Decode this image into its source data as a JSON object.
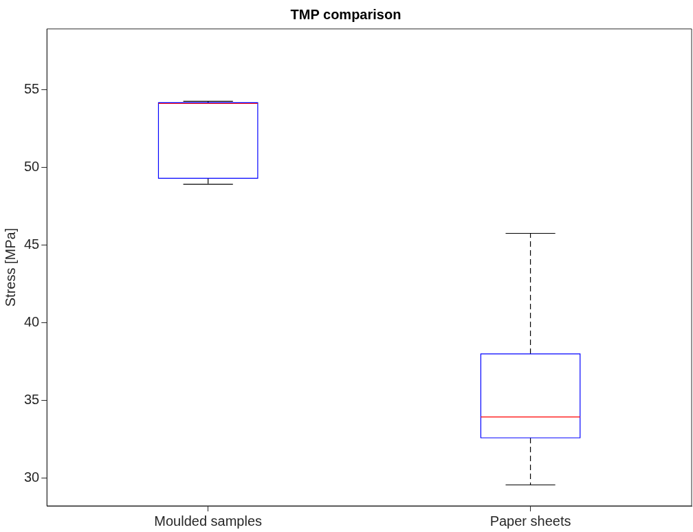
{
  "chart_data": {
    "type": "box",
    "title": "TMP comparison",
    "ylabel": "Stress [MPa]",
    "categories": [
      "Moulded samples",
      "Paper sheets"
    ],
    "color": "#0000ff",
    "boxes": [
      {
        "low": 48.9,
        "q1": 49.28,
        "median": 54.1,
        "q3": 54.15,
        "high": 54.24
      },
      {
        "low": 29.55,
        "q1": 32.58,
        "median": 33.92,
        "q3": 37.98,
        "high": 45.74
      }
    ],
    "ylim": [
      28.2,
      58.9
    ],
    "yticks": [
      30,
      35,
      40,
      45,
      50,
      55
    ]
  }
}
